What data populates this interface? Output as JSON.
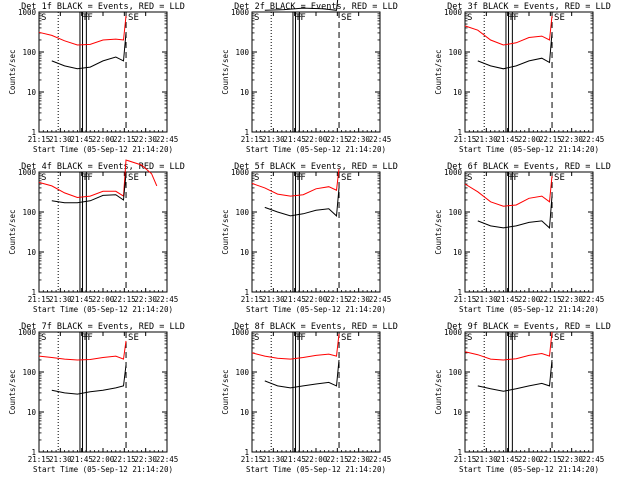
{
  "figure": {
    "xlabel": "Start Time (05-Sep-12 21:14:20)",
    "ylabel": "Counts/sec",
    "x_ticks": [
      "21:15",
      "21:30",
      "21:45",
      "22:00",
      "22:15",
      "22:30",
      "22:45"
    ],
    "y_ticks": [
      "1",
      "10",
      "100",
      "1000"
    ],
    "colors": {
      "events": "#000000",
      "lld": "#ff0000",
      "axes": "#000000",
      "background": "#ffffff"
    },
    "marker_labels": {
      "start": "S",
      "flag": "F",
      "end": "SE"
    }
  },
  "chart_data": [
    {
      "type": "line",
      "title": "Det 1f BLACK = Events, RED = LLD",
      "xlim_min": [
        0,
        100
      ],
      "ylim": [
        1,
        1000
      ],
      "yscale": "log",
      "markers_min": {
        "dotted": [
          15,
          100
        ],
        "solid": [
          32,
          34,
          37
        ],
        "dashed": [
          68
        ]
      },
      "series": [
        {
          "color": "#ff0000",
          "points": [
            [
              0,
              310
            ],
            [
              10,
              260
            ],
            [
              20,
              190
            ],
            [
              30,
              150
            ],
            [
              40,
              155
            ],
            [
              50,
              200
            ],
            [
              60,
              210
            ],
            [
              66,
              200
            ],
            [
              68,
              800
            ]
          ]
        },
        {
          "color": "#000000",
          "points": [
            [
              10,
              60
            ],
            [
              20,
              45
            ],
            [
              30,
              38
            ],
            [
              40,
              42
            ],
            [
              50,
              60
            ],
            [
              60,
              75
            ],
            [
              66,
              60
            ],
            [
              68,
              300
            ]
          ]
        }
      ]
    },
    {
      "type": "line",
      "title": "Det 2f BLACK = Events, RED = LLD",
      "xlim_min": [
        0,
        100
      ],
      "ylim": [
        1,
        1000
      ],
      "yscale": "log",
      "markers_min": {
        "dotted": [
          15,
          100
        ],
        "solid": [
          32,
          34,
          37
        ],
        "dashed": [
          68
        ]
      },
      "series": [
        {
          "color": "#ff0000",
          "points": [
            [
              0,
              2200
            ],
            [
              20,
              2300
            ],
            [
              40,
              2400
            ],
            [
              55,
              2300
            ],
            [
              66,
              2200
            ],
            [
              68,
              6000
            ]
          ]
        },
        {
          "color": "#000000",
          "points": [
            [
              10,
              1100
            ],
            [
              25,
              1150
            ],
            [
              40,
              1250
            ],
            [
              55,
              1200
            ],
            [
              66,
              1100
            ],
            [
              68,
              4000
            ]
          ]
        }
      ]
    },
    {
      "type": "line",
      "title": "Det 3f BLACK = Events, RED = LLD",
      "xlim_min": [
        0,
        100
      ],
      "ylim": [
        1,
        1000
      ],
      "yscale": "log",
      "markers_min": {
        "dotted": [
          15,
          100
        ],
        "solid": [
          32,
          34,
          37
        ],
        "dashed": [
          68
        ]
      },
      "series": [
        {
          "color": "#ff0000",
          "points": [
            [
              0,
              450
            ],
            [
              10,
              350
            ],
            [
              20,
              200
            ],
            [
              30,
              150
            ],
            [
              40,
              170
            ],
            [
              50,
              230
            ],
            [
              60,
              250
            ],
            [
              66,
              200
            ],
            [
              68,
              800
            ]
          ]
        },
        {
          "color": "#000000",
          "points": [
            [
              10,
              60
            ],
            [
              20,
              45
            ],
            [
              30,
              38
            ],
            [
              40,
              45
            ],
            [
              50,
              60
            ],
            [
              60,
              70
            ],
            [
              66,
              55
            ],
            [
              68,
              300
            ]
          ]
        }
      ]
    },
    {
      "type": "line",
      "title": "Det 4f BLACK = Events, RED = LLD",
      "xlim_min": [
        0,
        100
      ],
      "ylim": [
        1,
        1000
      ],
      "yscale": "log",
      "markers_min": {
        "dotted": [
          15,
          100
        ],
        "solid": [
          32,
          34,
          37
        ],
        "dashed": [
          68
        ]
      },
      "series": [
        {
          "color": "#ff0000",
          "points": [
            [
              0,
              550
            ],
            [
              10,
              450
            ],
            [
              20,
              300
            ],
            [
              30,
              230
            ],
            [
              40,
              250
            ],
            [
              50,
              330
            ],
            [
              60,
              330
            ],
            [
              66,
              250
            ],
            [
              68,
              2000
            ],
            [
              80,
              1500
            ],
            [
              88,
              900
            ],
            [
              92,
              450
            ]
          ]
        },
        {
          "color": "#000000",
          "points": [
            [
              10,
              190
            ],
            [
              20,
              170
            ],
            [
              30,
              170
            ],
            [
              40,
              190
            ],
            [
              50,
              260
            ],
            [
              60,
              270
            ],
            [
              66,
              200
            ],
            [
              68,
              900
            ]
          ]
        }
      ]
    },
    {
      "type": "line",
      "title": "Det 5f BLACK = Events, RED = LLD",
      "xlim_min": [
        0,
        100
      ],
      "ylim": [
        1,
        1000
      ],
      "yscale": "log",
      "markers_min": {
        "dotted": [
          15,
          100
        ],
        "solid": [
          32,
          34,
          37
        ],
        "dashed": [
          68
        ]
      },
      "series": [
        {
          "color": "#ff0000",
          "points": [
            [
              0,
              520
            ],
            [
              10,
              400
            ],
            [
              20,
              280
            ],
            [
              30,
              250
            ],
            [
              40,
              270
            ],
            [
              50,
              380
            ],
            [
              60,
              430
            ],
            [
              66,
              350
            ],
            [
              68,
              1200
            ]
          ]
        },
        {
          "color": "#000000",
          "points": [
            [
              10,
              130
            ],
            [
              20,
              100
            ],
            [
              30,
              80
            ],
            [
              40,
              90
            ],
            [
              50,
              110
            ],
            [
              60,
              120
            ],
            [
              66,
              80
            ],
            [
              68,
              400
            ]
          ]
        }
      ]
    },
    {
      "type": "line",
      "title": "Det 6f BLACK = Events, RED = LLD",
      "xlim_min": [
        0,
        100
      ],
      "ylim": [
        1,
        1000
      ],
      "yscale": "log",
      "markers_min": {
        "dotted": [
          15,
          100
        ],
        "solid": [
          32,
          34,
          37
        ],
        "dashed": [
          68
        ]
      },
      "series": [
        {
          "color": "#ff0000",
          "points": [
            [
              0,
              500
            ],
            [
              10,
              320
            ],
            [
              20,
              180
            ],
            [
              30,
              140
            ],
            [
              40,
              150
            ],
            [
              50,
              220
            ],
            [
              60,
              250
            ],
            [
              66,
              180
            ],
            [
              68,
              800
            ]
          ]
        },
        {
          "color": "#000000",
          "points": [
            [
              10,
              60
            ],
            [
              20,
              45
            ],
            [
              30,
              40
            ],
            [
              40,
              45
            ],
            [
              50,
              55
            ],
            [
              60,
              60
            ],
            [
              66,
              40
            ],
            [
              68,
              250
            ]
          ]
        }
      ]
    },
    {
      "type": "line",
      "title": "Det 7f BLACK = Events, RED = LLD",
      "xlim_min": [
        0,
        100
      ],
      "ylim": [
        1,
        1000
      ],
      "yscale": "log",
      "markers_min": {
        "dotted": [
          15,
          100
        ],
        "solid": [
          32,
          34,
          37
        ],
        "dashed": [
          68
        ]
      },
      "series": [
        {
          "color": "#ff0000",
          "points": [
            [
              0,
              250
            ],
            [
              10,
              230
            ],
            [
              20,
              210
            ],
            [
              30,
              200
            ],
            [
              40,
              205
            ],
            [
              50,
              230
            ],
            [
              60,
              250
            ],
            [
              66,
              210
            ],
            [
              68,
              600
            ]
          ]
        },
        {
          "color": "#000000",
          "points": [
            [
              10,
              35
            ],
            [
              20,
              30
            ],
            [
              30,
              28
            ],
            [
              40,
              32
            ],
            [
              50,
              35
            ],
            [
              60,
              40
            ],
            [
              66,
              45
            ],
            [
              68,
              150
            ]
          ]
        }
      ]
    },
    {
      "type": "line",
      "title": "Det 8f BLACK = Events, RED = LLD",
      "xlim_min": [
        0,
        100
      ],
      "ylim": [
        1,
        1000
      ],
      "yscale": "log",
      "markers_min": {
        "dotted": [
          15,
          100
        ],
        "solid": [
          32,
          34,
          37
        ],
        "dashed": [
          68
        ]
      },
      "series": [
        {
          "color": "#ff0000",
          "points": [
            [
              0,
              300
            ],
            [
              10,
              250
            ],
            [
              20,
              220
            ],
            [
              30,
              210
            ],
            [
              40,
              230
            ],
            [
              50,
              260
            ],
            [
              60,
              280
            ],
            [
              66,
              250
            ],
            [
              68,
              900
            ]
          ]
        },
        {
          "color": "#000000",
          "points": [
            [
              10,
              60
            ],
            [
              20,
              45
            ],
            [
              30,
              40
            ],
            [
              40,
              45
            ],
            [
              50,
              50
            ],
            [
              60,
              55
            ],
            [
              66,
              45
            ],
            [
              68,
              200
            ]
          ]
        }
      ]
    },
    {
      "type": "line",
      "title": "Det 9f BLACK = Events, RED = LLD",
      "xlim_min": [
        0,
        100
      ],
      "ylim": [
        1,
        1000
      ],
      "yscale": "log",
      "markers_min": {
        "dotted": [
          15,
          100
        ],
        "solid": [
          32,
          34,
          37
        ],
        "dashed": [
          68
        ]
      },
      "series": [
        {
          "color": "#ff0000",
          "points": [
            [
              0,
              320
            ],
            [
              10,
              270
            ],
            [
              20,
              210
            ],
            [
              30,
              200
            ],
            [
              40,
              215
            ],
            [
              50,
              260
            ],
            [
              60,
              290
            ],
            [
              66,
              250
            ],
            [
              68,
              1000
            ]
          ]
        },
        {
          "color": "#000000",
          "points": [
            [
              10,
              45
            ],
            [
              20,
              38
            ],
            [
              30,
              33
            ],
            [
              40,
              38
            ],
            [
              50,
              45
            ],
            [
              60,
              52
            ],
            [
              66,
              45
            ],
            [
              68,
              200
            ]
          ]
        }
      ]
    }
  ]
}
